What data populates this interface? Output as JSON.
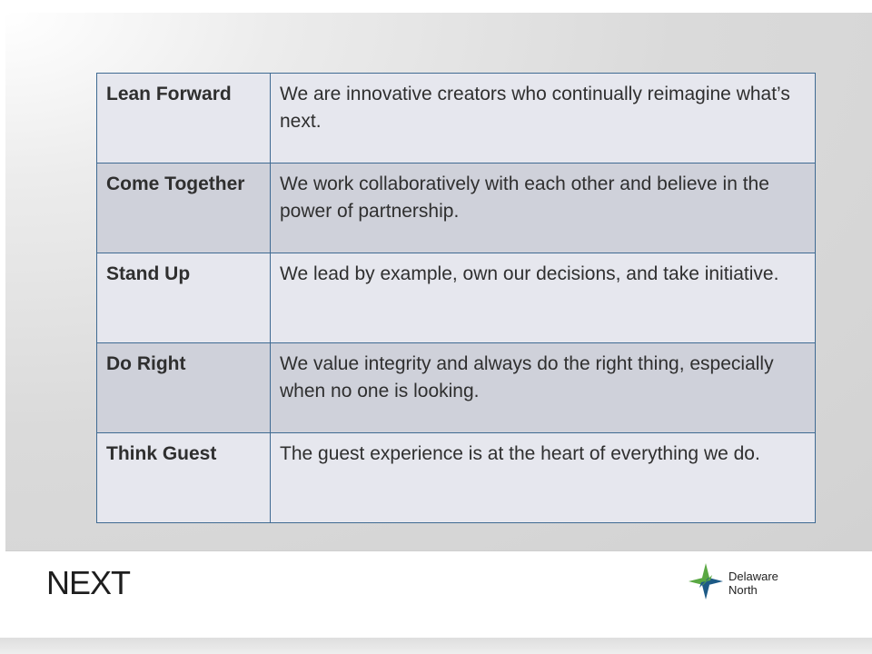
{
  "values": [
    {
      "name": "Lean Forward",
      "description": "We are innovative creators who continually reimagine what’s next."
    },
    {
      "name": "Come Together",
      "description": "We work collaboratively with each other and believe in the power of partnership."
    },
    {
      "name": "Stand Up",
      "description": "We lead by example, own our decisions, and take initiative."
    },
    {
      "name": "Do Right",
      "description": "We value integrity and always do the right thing, especially when no one is looking."
    },
    {
      "name": "Think Guest",
      "description": "The guest experience is at the heart of everything we do."
    }
  ],
  "footer": {
    "logo_text": "NEXT",
    "brand_line1": "Delaware",
    "brand_line2": "North"
  },
  "colors": {
    "border": "#3f6a92",
    "row_light": "#e6e7ee",
    "row_dark": "#cfd1da",
    "logo_green": "#5aa843",
    "logo_blue": "#1d5a86"
  }
}
